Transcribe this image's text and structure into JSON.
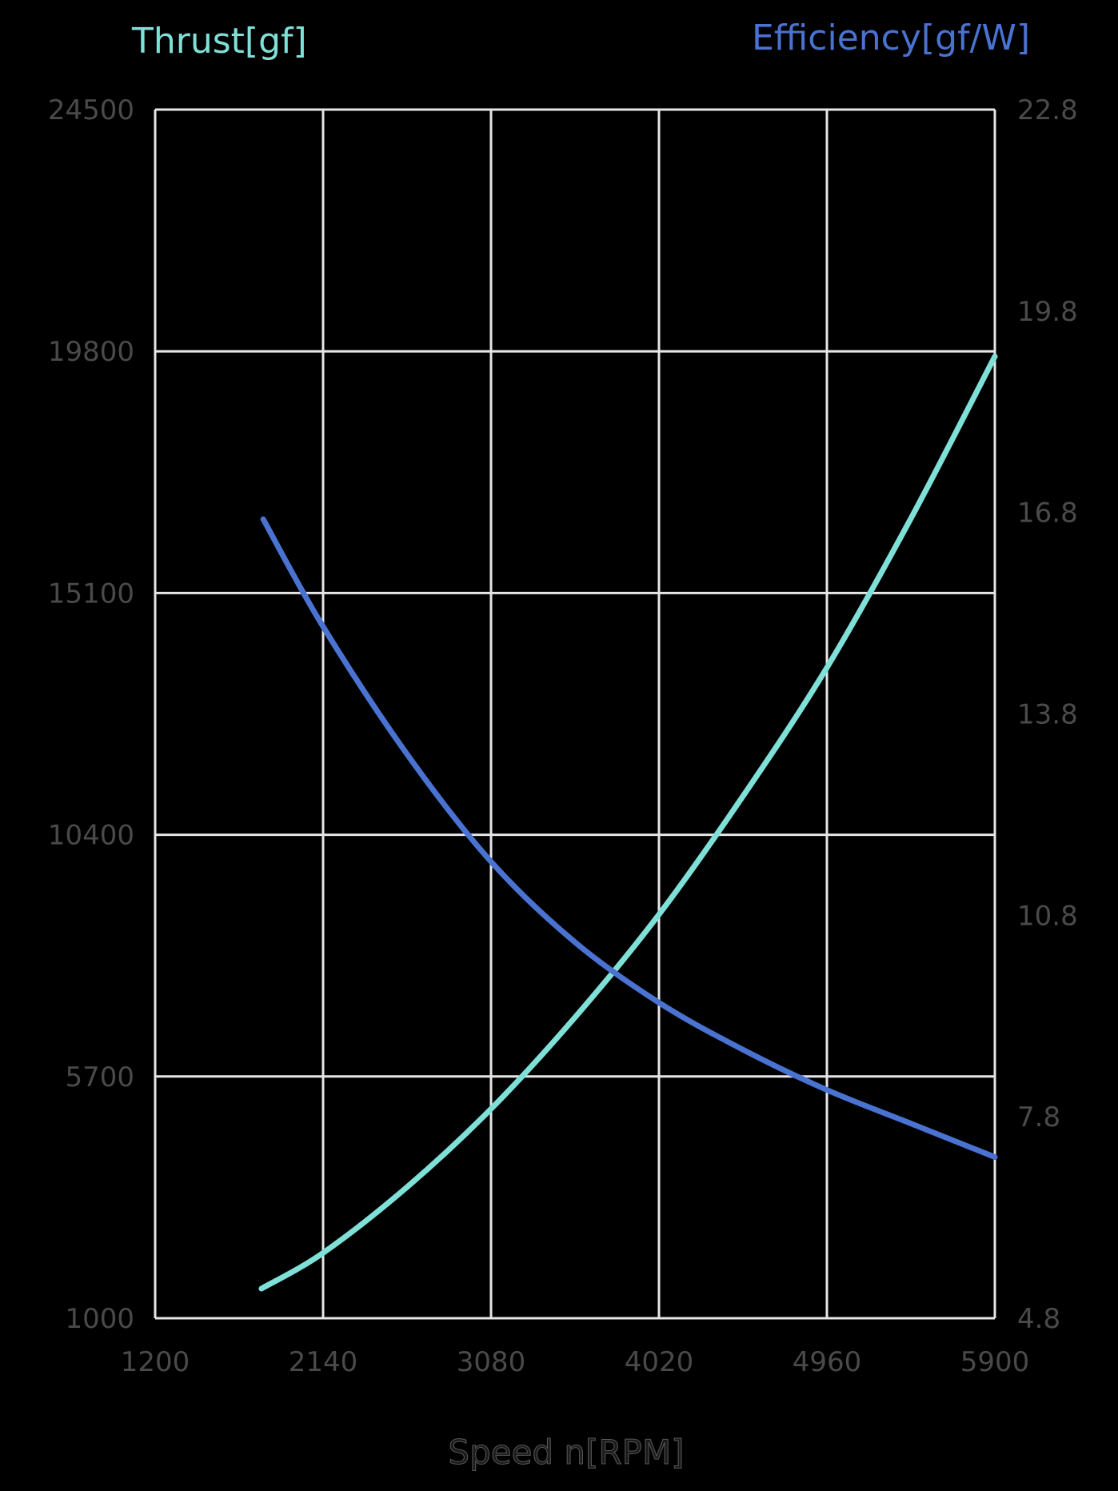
{
  "chart_data": {
    "type": "line",
    "title": "",
    "xlabel": "Speed n[RPM]",
    "ylabel_left": "Thrust[gf]",
    "ylabel_right": "Efficiency[gf/W]",
    "xlim": [
      1200,
      5900
    ],
    "ylim_left": [
      1000,
      24500
    ],
    "ylim_right": [
      4.8,
      22.8
    ],
    "x_ticks": [
      1200,
      2140,
      3080,
      4020,
      4960,
      5900
    ],
    "y_ticks_left": [
      1000,
      5700,
      10400,
      15100,
      19800,
      24500
    ],
    "y_ticks_right": [
      4.8,
      7.8,
      10.8,
      13.8,
      16.8,
      19.8,
      22.8
    ],
    "grid": true,
    "legend": "axis titles colored per series",
    "series": [
      {
        "name": "Thrust[gf]",
        "axis": "left",
        "color": "#7fe0d8",
        "x": [
          1795,
          2140,
          2610,
          3080,
          3550,
          4020,
          4490,
          4960,
          5430,
          5900
        ],
        "values": [
          1575,
          2270,
          3550,
          5070,
          6850,
          8850,
          11150,
          13650,
          16550,
          19700
        ]
      },
      {
        "name": "Efficiency[gf/W]",
        "axis": "right",
        "color": "#4a72d0",
        "x": [
          1805,
          2140,
          2610,
          3080,
          3550,
          4020,
          4490,
          4960,
          5430,
          5900
        ],
        "values": [
          16.7,
          15.1,
          13.2,
          11.6,
          10.4,
          9.5,
          8.8,
          8.2,
          7.7,
          7.2
        ]
      }
    ]
  },
  "labels": {
    "left_axis_title": "Thrust[gf]",
    "right_axis_title": "Efficiency[gf/W]",
    "x_axis_title": "Speed n[RPM]"
  },
  "colors": {
    "background": "#000000",
    "grid": "#e6e6e6",
    "tick_text": "#4a4a4a",
    "thrust": "#7fe0d8",
    "efficiency": "#4a72d0"
  }
}
